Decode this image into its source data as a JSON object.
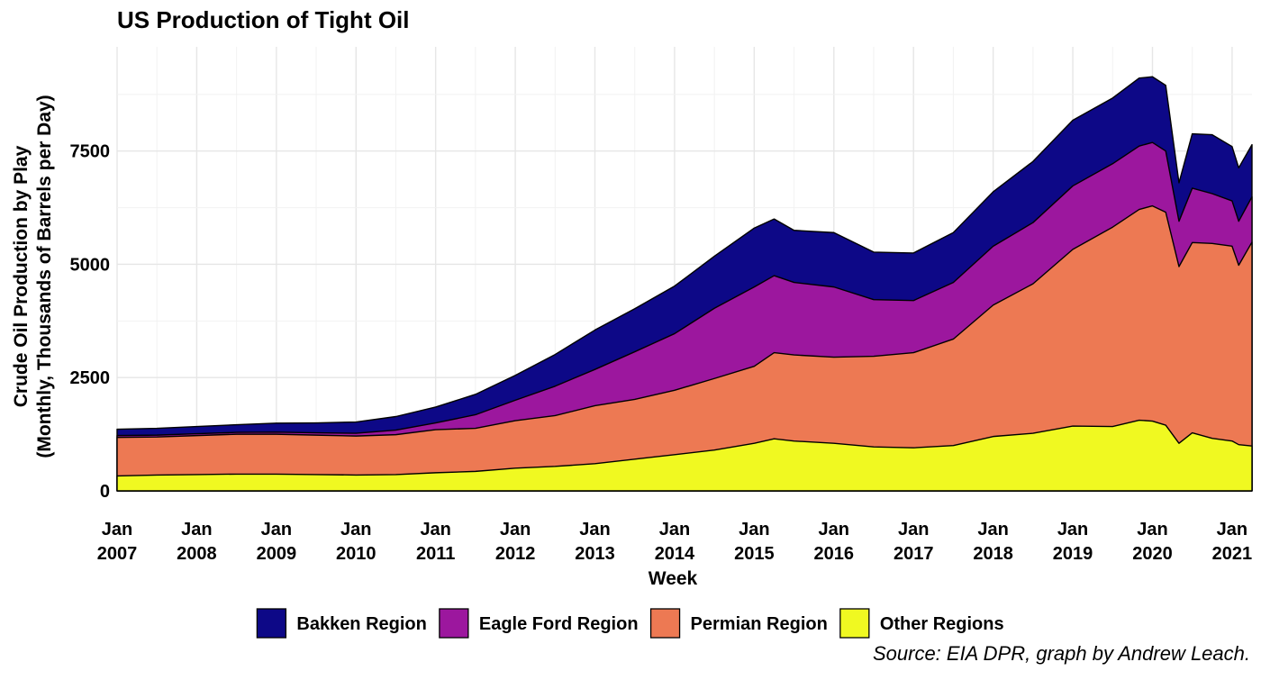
{
  "chart_data": {
    "type": "area",
    "stacked": true,
    "title": "US Production of Tight Oil",
    "xlabel": "Week",
    "ylabel_line1": "Crude Oil Production by Play",
    "ylabel_line2": "(Monthly, Thousands of Barrels per Day)",
    "source": "Source: EIA DPR, graph by Andrew Leach.",
    "x_range": [
      "2007-01",
      "2021-04"
    ],
    "ylim": [
      0,
      9800
    ],
    "y_ticks": [
      0,
      2500,
      5000,
      7500
    ],
    "y_tick_labels": [
      "0",
      "2500",
      "5000",
      "7500"
    ],
    "x_ticks": [
      {
        "date": "2007-01",
        "line1": "Jan",
        "line2": "2007"
      },
      {
        "date": "2008-01",
        "line1": "Jan",
        "line2": "2008"
      },
      {
        "date": "2009-01",
        "line1": "Jan",
        "line2": "2009"
      },
      {
        "date": "2010-01",
        "line1": "Jan",
        "line2": "2010"
      },
      {
        "date": "2011-01",
        "line1": "Jan",
        "line2": "2011"
      },
      {
        "date": "2012-01",
        "line1": "Jan",
        "line2": "2012"
      },
      {
        "date": "2013-01",
        "line1": "Jan",
        "line2": "2013"
      },
      {
        "date": "2014-01",
        "line1": "Jan",
        "line2": "2014"
      },
      {
        "date": "2015-01",
        "line1": "Jan",
        "line2": "2015"
      },
      {
        "date": "2016-01",
        "line1": "Jan",
        "line2": "2016"
      },
      {
        "date": "2017-01",
        "line1": "Jan",
        "line2": "2017"
      },
      {
        "date": "2018-01",
        "line1": "Jan",
        "line2": "2018"
      },
      {
        "date": "2019-01",
        "line1": "Jan",
        "line2": "2019"
      },
      {
        "date": "2020-01",
        "line1": "Jan",
        "line2": "2020"
      },
      {
        "date": "2021-01",
        "line1": "Jan",
        "line2": "2021"
      }
    ],
    "grid": true,
    "legend_position": "bottom",
    "x": [
      "2007-01",
      "2007-07",
      "2008-01",
      "2008-07",
      "2009-01",
      "2009-07",
      "2010-01",
      "2010-07",
      "2011-01",
      "2011-07",
      "2012-01",
      "2012-07",
      "2013-01",
      "2013-07",
      "2014-01",
      "2014-07",
      "2015-01",
      "2015-04",
      "2015-07",
      "2016-01",
      "2016-07",
      "2017-01",
      "2017-07",
      "2018-01",
      "2018-07",
      "2019-01",
      "2019-07",
      "2019-11",
      "2020-01",
      "2020-03",
      "2020-05",
      "2020-07",
      "2020-10",
      "2021-01",
      "2021-02",
      "2021-04"
    ],
    "series": [
      {
        "name": "Other Regions",
        "color": "#f0f921",
        "values": [
          330,
          350,
          360,
          370,
          370,
          360,
          350,
          360,
          400,
          430,
          500,
          540,
          600,
          700,
          800,
          900,
          1050,
          1150,
          1100,
          1050,
          970,
          950,
          1000,
          1200,
          1270,
          1430,
          1420,
          1560,
          1540,
          1450,
          1050,
          1280,
          1160,
          1100,
          1020,
          990
        ]
      },
      {
        "name": "Permian Region",
        "color": "#ed7953",
        "values": [
          850,
          840,
          860,
          880,
          880,
          870,
          860,
          880,
          950,
          950,
          1050,
          1120,
          1280,
          1320,
          1420,
          1580,
          1700,
          1900,
          1900,
          1900,
          2000,
          2100,
          2350,
          2900,
          3300,
          3900,
          4400,
          4650,
          4750,
          4700,
          3900,
          4200,
          4300,
          4300,
          3960,
          4500
        ]
      },
      {
        "name": "Eagle Ford Region",
        "color": "#9c179e",
        "values": [
          40,
          40,
          40,
          40,
          45,
          50,
          60,
          100,
          150,
          300,
          450,
          650,
          800,
          1050,
          1250,
          1550,
          1750,
          1700,
          1600,
          1550,
          1250,
          1150,
          1250,
          1300,
          1350,
          1400,
          1400,
          1400,
          1400,
          1350,
          1000,
          1200,
          1100,
          1000,
          970,
          1000
        ]
      },
      {
        "name": "Bakken Region",
        "color": "#0d0887",
        "values": [
          140,
          150,
          160,
          170,
          200,
          220,
          250,
          300,
          350,
          450,
          550,
          700,
          870,
          950,
          1050,
          1150,
          1300,
          1250,
          1150,
          1200,
          1050,
          1050,
          1100,
          1200,
          1350,
          1450,
          1450,
          1500,
          1450,
          1450,
          850,
          1200,
          1300,
          1200,
          1180,
          1150
        ]
      }
    ],
    "legend": [
      {
        "name": "Bakken Region",
        "color": "#0d0887"
      },
      {
        "name": "Eagle Ford Region",
        "color": "#9c179e"
      },
      {
        "name": "Permian Region",
        "color": "#ed7953"
      },
      {
        "name": "Other Regions",
        "color": "#f0f921"
      }
    ]
  }
}
